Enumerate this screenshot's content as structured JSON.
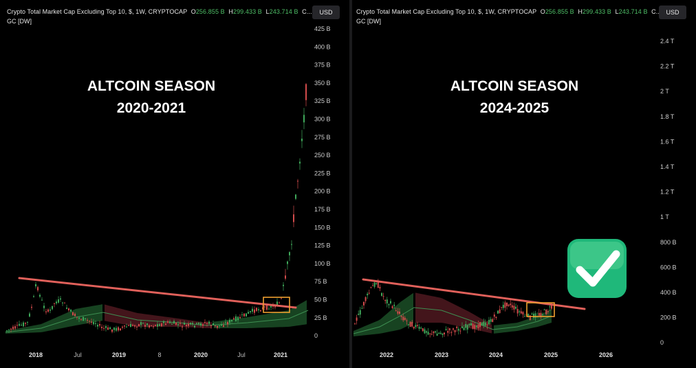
{
  "left": {
    "legend": {
      "title": "Crypto Total Market Cap Excluding Top 10, $, 1W, CRYPTOCAP",
      "o_label": "O",
      "o": "256.855 B",
      "h_label": "H",
      "h": "299.433 B",
      "l_label": "L",
      "l": "243.714 B",
      "tail": "C...",
      "line2": "GC [DW]"
    },
    "currency": "USD",
    "headline": [
      "ALTCOIN SEASON",
      "2020-2021"
    ],
    "yaxis": [
      "425 B",
      "400 B",
      "375 B",
      "350 B",
      "325 B",
      "300 B",
      "275 B",
      "250 B",
      "225 B",
      "200 B",
      "175 B",
      "150 B",
      "125 B",
      "100 B",
      "75 B",
      "50 B",
      "25 B",
      "0"
    ],
    "xaxis": [
      {
        "label": "2018",
        "bold": true
      },
      {
        "label": "Jul",
        "bold": false
      },
      {
        "label": "2019",
        "bold": true
      },
      {
        "label": "8",
        "bold": false
      },
      {
        "label": "2020",
        "bold": true
      },
      {
        "label": "Jul",
        "bold": false
      },
      {
        "label": "2021",
        "bold": true
      }
    ]
  },
  "right": {
    "legend": {
      "title": "Crypto Total Market Cap Excluding Top 10, $, 1W, CRYPTOCAP",
      "o_label": "O",
      "o": "256.855 B",
      "h_label": "H",
      "h": "299.433 B",
      "l_label": "L",
      "l": "243.714 B",
      "tail": "C...",
      "line2": "GC [DW]"
    },
    "currency": "USD",
    "headline": [
      "ALTCOIN SEASON",
      "2024-2025"
    ],
    "yaxis": [
      "2.4 T",
      "2.2 T",
      "2 T",
      "1.8 T",
      "1.6 T",
      "1.4 T",
      "1.2 T",
      "1 T",
      "800 B",
      "600 B",
      "400 B",
      "200 B",
      "0"
    ],
    "xaxis": [
      {
        "label": "2022",
        "bold": true
      },
      {
        "label": "2023",
        "bold": true
      },
      {
        "label": "2024",
        "bold": true
      },
      {
        "label": "2025",
        "bold": true
      },
      {
        "label": "2026",
        "bold": true
      }
    ],
    "badge": "check-mark"
  },
  "colors": {
    "up": "#3fa85a",
    "down": "#d24b4b",
    "trendline": "#e0605a",
    "box": "#f0a030",
    "band_green": "#1f5a2c",
    "band_red": "#5a1c24",
    "badge": "#1fb87a"
  },
  "chart_data": [
    {
      "type": "candlestick",
      "title": "Crypto Total Market Cap Excluding Top 10, $, 1W, CRYPTOCAP",
      "x_ticks": [
        "2018",
        "Jul",
        "2019",
        "8",
        "2020",
        "Jul",
        "2021"
      ],
      "ylim": [
        0,
        425
      ],
      "y_unit": "B",
      "approx_close_series": [
        {
          "x": "2018-01",
          "y": 75
        },
        {
          "x": "2018-03",
          "y": 50
        },
        {
          "x": "2018-05",
          "y": 55
        },
        {
          "x": "2018-07",
          "y": 30
        },
        {
          "x": "2018-09",
          "y": 24
        },
        {
          "x": "2018-12",
          "y": 13
        },
        {
          "x": "2019-03",
          "y": 14
        },
        {
          "x": "2019-06",
          "y": 20
        },
        {
          "x": "2019-09",
          "y": 15
        },
        {
          "x": "2019-12",
          "y": 12
        },
        {
          "x": "2020-03",
          "y": 10
        },
        {
          "x": "2020-06",
          "y": 16
        },
        {
          "x": "2020-09",
          "y": 28
        },
        {
          "x": "2020-12",
          "y": 38
        },
        {
          "x": "2021-01",
          "y": 60
        },
        {
          "x": "2021-02",
          "y": 150
        },
        {
          "x": "2021-03",
          "y": 220
        },
        {
          "x": "2021-04",
          "y": 330
        },
        {
          "x": "2021-05",
          "y": 375
        }
      ],
      "annotation": "ALTCOIN SEASON 2020-2021"
    },
    {
      "type": "candlestick",
      "title": "Crypto Total Market Cap Excluding Top 10, $, 1W, CRYPTOCAP",
      "x_ticks": [
        "2022",
        "2023",
        "2024",
        "2025",
        "2026"
      ],
      "ylim": [
        0,
        2400
      ],
      "y_unit": "B",
      "approx_close_series": [
        {
          "x": "2021-06",
          "y": 250
        },
        {
          "x": "2021-11",
          "y": 470
        },
        {
          "x": "2022-02",
          "y": 400
        },
        {
          "x": "2022-05",
          "y": 230
        },
        {
          "x": "2022-08",
          "y": 180
        },
        {
          "x": "2022-12",
          "y": 110
        },
        {
          "x": "2023-04",
          "y": 140
        },
        {
          "x": "2023-09",
          "y": 120
        },
        {
          "x": "2024-01",
          "y": 250
        },
        {
          "x": "2024-03",
          "y": 330
        },
        {
          "x": "2024-06",
          "y": 260
        },
        {
          "x": "2024-09",
          "y": 220
        },
        {
          "x": "2024-12",
          "y": 300
        }
      ],
      "annotation": "ALTCOIN SEASON 2024-2025"
    }
  ]
}
